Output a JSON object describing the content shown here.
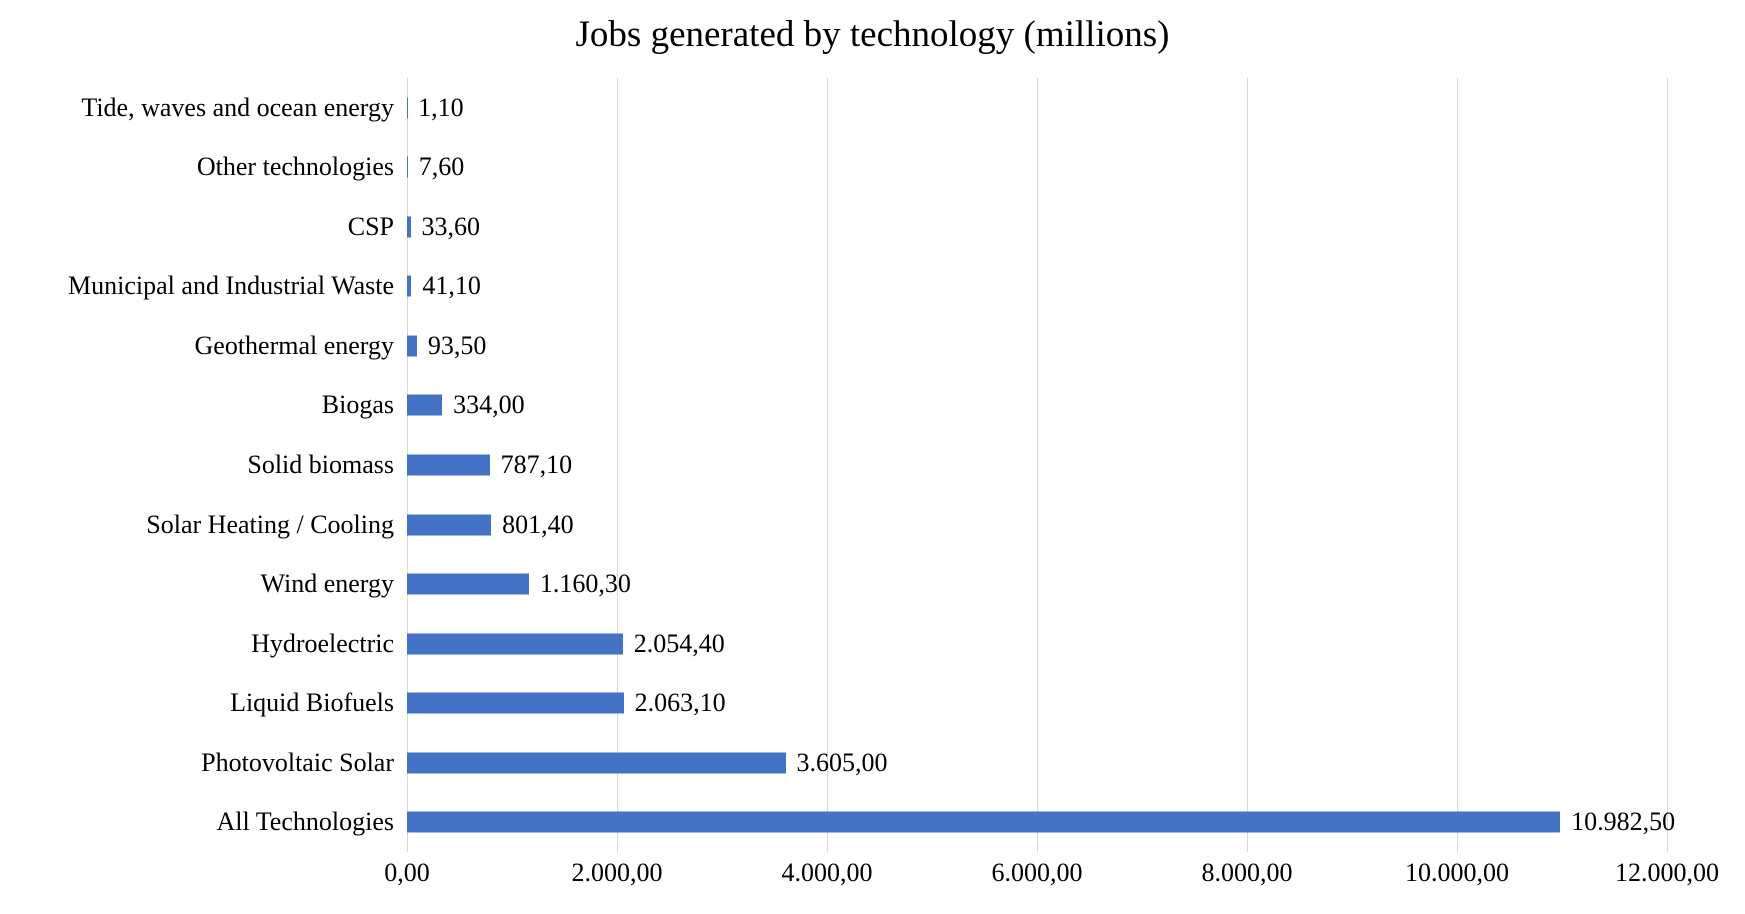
{
  "chart_data": {
    "type": "bar",
    "orientation": "horizontal",
    "title": "Jobs generated by technology (millions)",
    "categories": [
      "Tide, waves and ocean energy",
      "Other technologies",
      "CSP",
      "Municipal and Industrial Waste",
      "Geothermal energy",
      "Biogas",
      "Solid biomass",
      "Solar Heating / Cooling",
      "Wind energy",
      "Hydroelectric",
      "Liquid Biofuels",
      "Photovoltaic Solar",
      "All Technologies"
    ],
    "values": [
      1.1,
      7.6,
      33.6,
      41.1,
      93.5,
      334.0,
      787.1,
      801.4,
      1160.3,
      2054.4,
      2063.1,
      3605.0,
      10982.5
    ],
    "value_labels": [
      "1,10",
      "7,60",
      "33,60",
      "41,10",
      "93,50",
      "334,00",
      "787,10",
      "801,40",
      "1.160,30",
      "2.054,40",
      "2.063,10",
      "3.605,00",
      "10.982,50"
    ],
    "xlabel": "",
    "ylabel": "",
    "xlim": [
      0,
      12000
    ],
    "xticks": [
      0,
      2000,
      4000,
      6000,
      8000,
      10000,
      12000
    ],
    "xtick_labels": [
      "0,00",
      "2.000,00",
      "4.000,00",
      "6.000,00",
      "8.000,00",
      "10.000,00",
      "12.000,00"
    ],
    "grid": true,
    "legend": false,
    "colors": {
      "bar": "#4472C4",
      "gridline": "#D9D9D9",
      "axis_line": "#D9D9D9",
      "text": "#000000",
      "background": "#FFFFFF"
    }
  }
}
